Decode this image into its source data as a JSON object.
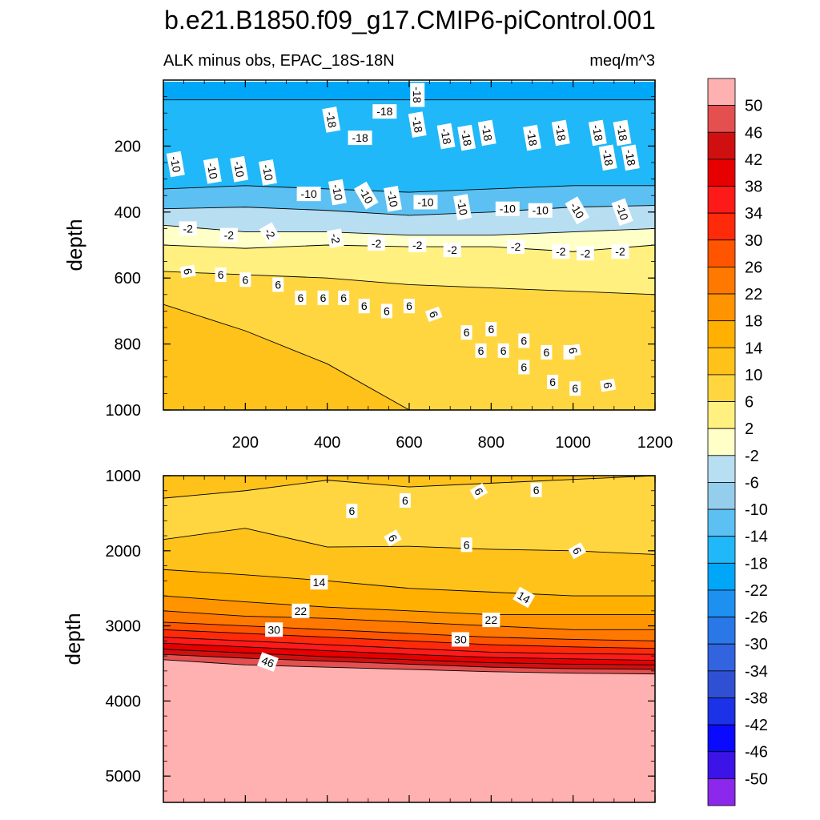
{
  "chart_data": {
    "type": "contour",
    "title": "b.e21.B1850.f09_g17.CMIP6-piControl.001",
    "subtitle_left": "ALK minus obs, EPAC_18S-18N",
    "subtitle_right": "meq/m^3",
    "units": "meq/m^3",
    "x_axis": {
      "range": [
        0,
        1200
      ],
      "ticks": [
        200,
        400,
        600,
        800,
        1000,
        1200
      ]
    },
    "panels": [
      {
        "name": "upper",
        "ylabel": "depth",
        "ylim": [
          0,
          1000
        ],
        "y_ticks": [
          200,
          400,
          600,
          800,
          1000
        ],
        "contour_bands": [
          {
            "top": [
              5,
              5,
              5,
              5,
              5,
              5,
              5
            ],
            "value": -22
          },
          {
            "top": [
              60,
              60,
              60,
              60,
              60,
              60,
              60
            ],
            "value": -18
          },
          {
            "top": [
              330,
              320,
              330,
              340,
              330,
              320,
              320
            ],
            "value": -14
          },
          {
            "top": [
              390,
              385,
              395,
              410,
              400,
              385,
              380
            ],
            "value": -6
          },
          {
            "top": [
              440,
              460,
              460,
              470,
              470,
              460,
              450
            ],
            "value": -2
          },
          {
            "top": [
              500,
              510,
              500,
              505,
              505,
              520,
              500
            ],
            "value": 2
          },
          {
            "top": [
              580,
              590,
              600,
              620,
              630,
              640,
              650
            ],
            "value": 6
          },
          {
            "top": [
              680,
              760,
              860,
              1000,
              1000,
              1000,
              1000
            ],
            "value": 10
          }
        ],
        "contour_lines": [
          {
            "level": -18,
            "depth": [
              60,
              60,
              60,
              60,
              60,
              60,
              60
            ]
          },
          {
            "level": -14,
            "depth": [
              330,
              320,
              330,
              340,
              330,
              320,
              320
            ]
          },
          {
            "level": -10,
            "depth": [
              390,
              385,
              395,
              410,
              400,
              385,
              380
            ]
          },
          {
            "level": -2,
            "depth": [
              440,
              460,
              460,
              470,
              470,
              460,
              450
            ]
          },
          {
            "level": 2,
            "depth": [
              500,
              510,
              500,
              505,
              505,
              520,
              500
            ]
          },
          {
            "level": 6,
            "depth": [
              580,
              590,
              600,
              620,
              630,
              640,
              650
            ]
          },
          {
            "level": 10,
            "depth": [
              680,
              760,
              860,
              1000,
              1000,
              1000,
              1000
            ]
          }
        ],
        "labels": [
          {
            "text": "-18",
            "x": 620,
            "y": 45,
            "rot": 90
          },
          {
            "text": "-18",
            "x": 410,
            "y": 120,
            "rot": 80
          },
          {
            "text": "-18",
            "x": 540,
            "y": 95,
            "rot": 0
          },
          {
            "text": "-18",
            "x": 480,
            "y": 175,
            "rot": 0
          },
          {
            "text": "-18",
            "x": 620,
            "y": 135,
            "rot": 80
          },
          {
            "text": "-18",
            "x": 690,
            "y": 170,
            "rot": 80
          },
          {
            "text": "-18",
            "x": 740,
            "y": 175,
            "rot": 80
          },
          {
            "text": "-18",
            "x": 790,
            "y": 160,
            "rot": 80
          },
          {
            "text": "-18",
            "x": 900,
            "y": 175,
            "rot": 80
          },
          {
            "text": "-18",
            "x": 970,
            "y": 160,
            "rot": 80
          },
          {
            "text": "-18",
            "x": 1060,
            "y": 160,
            "rot": 80
          },
          {
            "text": "-18",
            "x": 1120,
            "y": 160,
            "rot": 80
          },
          {
            "text": "-18",
            "x": 1085,
            "y": 235,
            "rot": 80
          },
          {
            "text": "-18",
            "x": 1140,
            "y": 235,
            "rot": 80
          },
          {
            "text": "-10",
            "x": 30,
            "y": 255,
            "rot": 80
          },
          {
            "text": "-10",
            "x": 120,
            "y": 275,
            "rot": 80
          },
          {
            "text": "-10",
            "x": 185,
            "y": 270,
            "rot": 80
          },
          {
            "text": "-10",
            "x": 255,
            "y": 280,
            "rot": 80
          },
          {
            "text": "-10",
            "x": 355,
            "y": 345,
            "rot": 0
          },
          {
            "text": "-10",
            "x": 425,
            "y": 340,
            "rot": 80
          },
          {
            "text": "-10",
            "x": 495,
            "y": 350,
            "rot": 60
          },
          {
            "text": "-10",
            "x": 560,
            "y": 360,
            "rot": 80
          },
          {
            "text": "-10",
            "x": 640,
            "y": 370,
            "rot": 0
          },
          {
            "text": "-10",
            "x": 730,
            "y": 385,
            "rot": 80
          },
          {
            "text": "-10",
            "x": 840,
            "y": 390,
            "rot": 0
          },
          {
            "text": "-10",
            "x": 920,
            "y": 395,
            "rot": 0
          },
          {
            "text": "-10",
            "x": 1010,
            "y": 395,
            "rot": 60
          },
          {
            "text": "-10",
            "x": 1120,
            "y": 400,
            "rot": 70
          },
          {
            "text": "-2",
            "x": 60,
            "y": 450,
            "rot": 0
          },
          {
            "text": "-2",
            "x": 160,
            "y": 470,
            "rot": 0
          },
          {
            "text": "-2",
            "x": 260,
            "y": 465,
            "rot": 60
          },
          {
            "text": "-2",
            "x": 420,
            "y": 480,
            "rot": 80
          },
          {
            "text": "-2",
            "x": 520,
            "y": 495,
            "rot": 0
          },
          {
            "text": "-2",
            "x": 620,
            "y": 500,
            "rot": 0
          },
          {
            "text": "-2",
            "x": 705,
            "y": 515,
            "rot": 0
          },
          {
            "text": "-2",
            "x": 860,
            "y": 505,
            "rot": 0
          },
          {
            "text": "-2",
            "x": 970,
            "y": 520,
            "rot": 0
          },
          {
            "text": "-2",
            "x": 1030,
            "y": 525,
            "rot": 0
          },
          {
            "text": "-2",
            "x": 1115,
            "y": 520,
            "rot": 0
          },
          {
            "text": "6",
            "x": 60,
            "y": 580,
            "rot": 80
          },
          {
            "text": "6",
            "x": 140,
            "y": 590,
            "rot": 0
          },
          {
            "text": "6",
            "x": 200,
            "y": 605,
            "rot": 0
          },
          {
            "text": "6",
            "x": 280,
            "y": 620,
            "rot": 0
          },
          {
            "text": "6",
            "x": 335,
            "y": 660,
            "rot": 0
          },
          {
            "text": "6",
            "x": 390,
            "y": 660,
            "rot": 0
          },
          {
            "text": "6",
            "x": 440,
            "y": 660,
            "rot": 0
          },
          {
            "text": "6",
            "x": 490,
            "y": 685,
            "rot": 0
          },
          {
            "text": "6",
            "x": 545,
            "y": 700,
            "rot": 0
          },
          {
            "text": "6",
            "x": 600,
            "y": 685,
            "rot": 0
          },
          {
            "text": "6",
            "x": 660,
            "y": 710,
            "rot": 70
          },
          {
            "text": "6",
            "x": 740,
            "y": 765,
            "rot": 0
          },
          {
            "text": "6",
            "x": 800,
            "y": 755,
            "rot": 0
          },
          {
            "text": "6",
            "x": 880,
            "y": 790,
            "rot": 0
          },
          {
            "text": "6",
            "x": 775,
            "y": 820,
            "rot": 0
          },
          {
            "text": "6",
            "x": 830,
            "y": 820,
            "rot": 0
          },
          {
            "text": "6",
            "x": 935,
            "y": 825,
            "rot": 0
          },
          {
            "text": "6",
            "x": 990,
            "y": 825,
            "rot": 0
          },
          {
            "text": "6",
            "x": 1000,
            "y": 820,
            "rot": 80
          },
          {
            "text": "6",
            "x": 880,
            "y": 870,
            "rot": 0
          },
          {
            "text": "6",
            "x": 950,
            "y": 915,
            "rot": 0
          },
          {
            "text": "6",
            "x": 1005,
            "y": 935,
            "rot": 0
          },
          {
            "text": "6",
            "x": 1085,
            "y": 925,
            "rot": 80
          }
        ]
      },
      {
        "name": "lower",
        "ylabel": "depth",
        "ylim": [
          1000,
          5350
        ],
        "y_ticks": [
          1000,
          2000,
          3000,
          4000,
          5000
        ],
        "contour_bands": [
          {
            "top": [
              1000,
              1000,
              1000,
              1000,
              1000,
              1000,
              1000
            ],
            "value": 10
          },
          {
            "top": [
              1300,
              1200,
              1060,
              1150,
              1100,
              1050,
              1000
            ],
            "value": 6
          },
          {
            "top": [
              1850,
              1700,
              1950,
              1940,
              1980,
              2000,
              2050
            ],
            "value": 10
          },
          {
            "top": [
              2250,
              2320,
              2400,
              2500,
              2550,
              2600,
              2600
            ],
            "value": 14
          },
          {
            "top": [
              2600,
              2680,
              2750,
              2800,
              2850,
              2850,
              2850
            ],
            "value": 18
          },
          {
            "top": [
              2800,
              2870,
              2900,
              2950,
              3000,
              3050,
              3050
            ],
            "value": 22
          },
          {
            "top": [
              2950,
              3000,
              3050,
              3100,
              3150,
              3180,
              3200
            ],
            "value": 26
          },
          {
            "top": [
              3050,
              3100,
              3150,
              3200,
              3250,
              3280,
              3300
            ],
            "value": 30
          },
          {
            "top": [
              3150,
              3200,
              3250,
              3300,
              3350,
              3370,
              3380
            ],
            "value": 34
          },
          {
            "top": [
              3230,
              3280,
              3330,
              3380,
              3420,
              3440,
              3460
            ],
            "value": 38
          },
          {
            "top": [
              3310,
              3360,
              3410,
              3450,
              3490,
              3510,
              3520
            ],
            "value": 42
          },
          {
            "top": [
              3380,
              3430,
              3470,
              3510,
              3550,
              3570,
              3580
            ],
            "value": 46
          },
          {
            "top": [
              3450,
              3520,
              3550,
              3580,
              3610,
              3630,
              3640
            ],
            "value": 52
          }
        ],
        "contour_lines": [
          {
            "level": 6,
            "depth": [
              1300,
              1200,
              1060,
              1150,
              1100,
              1050,
              1000
            ]
          },
          {
            "level": 6,
            "depth": [
              1850,
              1700,
              1950,
              1940,
              1980,
              2000,
              2050
            ]
          },
          {
            "level": 10,
            "depth": [
              2250,
              2320,
              2400,
              2500,
              2550,
              2600,
              2600
            ]
          },
          {
            "level": 14,
            "depth": [
              2600,
              2680,
              2750,
              2800,
              2850,
              2850,
              2850
            ]
          },
          {
            "level": 18,
            "depth": [
              2800,
              2870,
              2900,
              2950,
              3000,
              3050,
              3050
            ]
          },
          {
            "level": 22,
            "depth": [
              2950,
              3000,
              3050,
              3100,
              3150,
              3180,
              3200
            ]
          },
          {
            "level": 26,
            "depth": [
              3050,
              3100,
              3150,
              3200,
              3250,
              3280,
              3300
            ]
          },
          {
            "level": 30,
            "depth": [
              3150,
              3200,
              3250,
              3300,
              3350,
              3370,
              3380
            ]
          },
          {
            "level": 34,
            "depth": [
              3230,
              3280,
              3330,
              3380,
              3420,
              3440,
              3460
            ]
          },
          {
            "level": 38,
            "depth": [
              3310,
              3360,
              3410,
              3450,
              3490,
              3510,
              3520
            ]
          },
          {
            "level": 42,
            "depth": [
              3380,
              3430,
              3470,
              3510,
              3550,
              3570,
              3580
            ]
          },
          {
            "level": 46,
            "depth": [
              3450,
              3520,
              3550,
              3580,
              3610,
              3630,
              3640
            ]
          }
        ],
        "labels": [
          {
            "text": "6",
            "x": 460,
            "y": 1470,
            "rot": 0
          },
          {
            "text": "6",
            "x": 590,
            "y": 1330,
            "rot": 0
          },
          {
            "text": "6",
            "x": 770,
            "y": 1210,
            "rot": 60
          },
          {
            "text": "6",
            "x": 910,
            "y": 1190,
            "rot": 0
          },
          {
            "text": "6",
            "x": 560,
            "y": 1830,
            "rot": 60
          },
          {
            "text": "6",
            "x": 740,
            "y": 1920,
            "rot": 0
          },
          {
            "text": "6",
            "x": 1010,
            "y": 2000,
            "rot": 60
          },
          {
            "text": "14",
            "x": 380,
            "y": 2420,
            "rot": 0
          },
          {
            "text": "14",
            "x": 880,
            "y": 2620,
            "rot": 30
          },
          {
            "text": "22",
            "x": 335,
            "y": 2800,
            "rot": 0
          },
          {
            "text": "22",
            "x": 800,
            "y": 2920,
            "rot": 0
          },
          {
            "text": "30",
            "x": 270,
            "y": 3050,
            "rot": 0
          },
          {
            "text": "30",
            "x": 725,
            "y": 3180,
            "rot": 0
          },
          {
            "text": "46",
            "x": 255,
            "y": 3480,
            "rot": 20
          }
        ]
      }
    ],
    "colorbar": {
      "labels": [
        "50",
        "46",
        "42",
        "38",
        "34",
        "30",
        "26",
        "22",
        "18",
        "14",
        "10",
        "6",
        "2",
        "-2",
        "-6",
        "-10",
        "-14",
        "-18",
        "-22",
        "-26",
        "-30",
        "-34",
        "-38",
        "-42",
        "-46",
        "-50"
      ],
      "colors": [
        "#ffb0b0",
        "#e45050",
        "#d01010",
        "#e60000",
        "#ff1a1a",
        "#ff2a0a",
        "#ff5500",
        "#ff7800",
        "#ff9400",
        "#ffb000",
        "#ffc21a",
        "#ffd640",
        "#fff080",
        "#ffffc8",
        "#b8def2",
        "#95cdec",
        "#5cc0f2",
        "#20b8f8",
        "#00a6f8",
        "#1e90f0",
        "#2a78e8",
        "#3264e0",
        "#3050d4",
        "#1b32e6",
        "#0a0aff",
        "#3c14e8",
        "#8c28ec"
      ]
    }
  }
}
